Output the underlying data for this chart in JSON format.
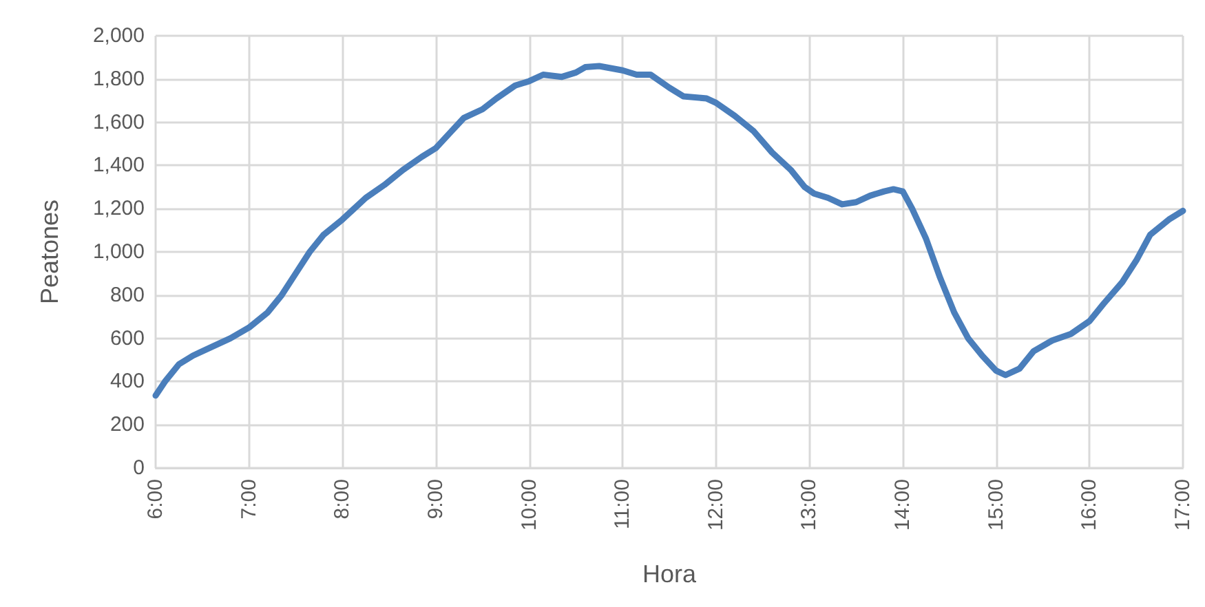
{
  "chart_data": {
    "type": "line",
    "xlabel": "Hora",
    "ylabel": "Peatones",
    "xlim": [
      6,
      17
    ],
    "xticks": [
      {
        "value": 6,
        "label": "6:00"
      },
      {
        "value": 7,
        "label": "7:00"
      },
      {
        "value": 8,
        "label": "8:00"
      },
      {
        "value": 9,
        "label": "9:00"
      },
      {
        "value": 10,
        "label": "10:00"
      },
      {
        "value": 11,
        "label": "11:00"
      },
      {
        "value": 12,
        "label": "12:00"
      },
      {
        "value": 13,
        "label": "13:00"
      },
      {
        "value": 14,
        "label": "14:00"
      },
      {
        "value": 15,
        "label": "15:00"
      },
      {
        "value": 16,
        "label": "16:00"
      },
      {
        "value": 17,
        "label": "17:00"
      }
    ],
    "ylim": [
      0,
      2000
    ],
    "yticks": [
      {
        "value": 0,
        "label": "0"
      },
      {
        "value": 200,
        "label": "200"
      },
      {
        "value": 400,
        "label": "400"
      },
      {
        "value": 600,
        "label": "600"
      },
      {
        "value": 800,
        "label": "800"
      },
      {
        "value": 1000,
        "label": "1,000"
      },
      {
        "value": 1200,
        "label": "1,200"
      },
      {
        "value": 1400,
        "label": "1,400"
      },
      {
        "value": 1600,
        "label": "1,600"
      },
      {
        "value": 1800,
        "label": "1,800"
      },
      {
        "value": 2000,
        "label": "2,000"
      }
    ],
    "grid": true,
    "marker": "none",
    "line_style": "solid",
    "x": [
      6,
      6.1,
      6.25,
      6.4,
      6.6,
      6.8,
      7,
      7.2,
      7.35,
      7.5,
      7.65,
      7.8,
      8,
      8.1,
      8.25,
      8.45,
      8.65,
      8.85,
      9,
      9.15,
      9.3,
      9.5,
      9.65,
      9.85,
      10,
      10.15,
      10.35,
      10.5,
      10.6,
      10.75,
      11,
      11.15,
      11.3,
      11.5,
      11.65,
      11.9,
      12,
      12.2,
      12.4,
      12.6,
      12.8,
      12.95,
      13.05,
      13.2,
      13.35,
      13.5,
      13.65,
      13.8,
      13.9,
      14,
      14.1,
      14.25,
      14.4,
      14.55,
      14.7,
      14.85,
      15,
      15.1,
      15.25,
      15.4,
      15.6,
      15.8,
      16,
      16.15,
      16.35,
      16.5,
      16.65,
      16.85,
      17
    ],
    "series": [
      {
        "color": "#4a7ebb",
        "values": [
          335,
          400,
          480,
          520,
          560,
          600,
          650,
          720,
          800,
          900,
          1000,
          1080,
          1150,
          1190,
          1250,
          1310,
          1380,
          1440,
          1480,
          1550,
          1620,
          1660,
          1710,
          1770,
          1790,
          1820,
          1810,
          1830,
          1855,
          1860,
          1840,
          1820,
          1820,
          1760,
          1720,
          1710,
          1690,
          1630,
          1560,
          1460,
          1380,
          1300,
          1270,
          1250,
          1220,
          1230,
          1260,
          1280,
          1290,
          1280,
          1200,
          1060,
          880,
          720,
          600,
          520,
          450,
          430,
          460,
          540,
          590,
          620,
          680,
          760,
          860,
          960,
          1080,
          1150,
          1190
        ]
      }
    ]
  }
}
